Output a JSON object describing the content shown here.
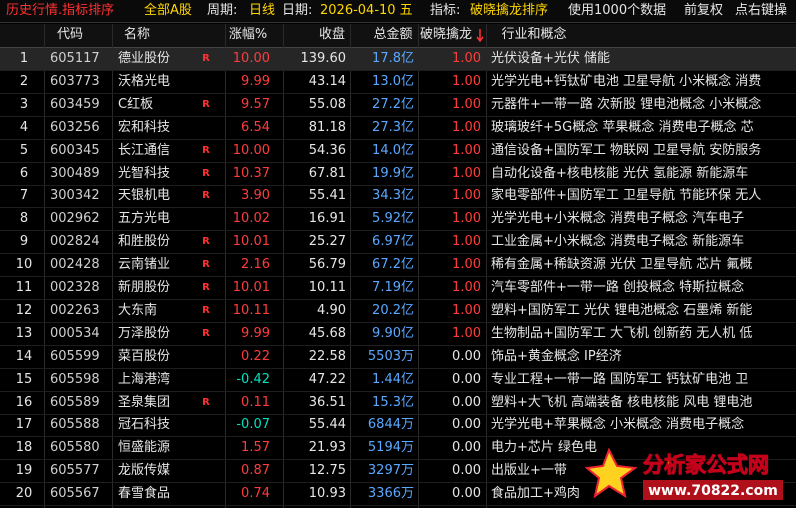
{
  "topbar": [
    "历史行情.指标排序",
    "全部A股",
    "周期:",
    "日线",
    "日期:",
    "2026-04-10 五",
    "指标:",
    "破晓擒龙排序",
    "使用1000个数据",
    "前复权",
    "点右键操"
  ],
  "columns": [
    "代码",
    "名称",
    "涨幅%",
    "收盘",
    "总金额",
    "破晓擒龙",
    "行业和概念"
  ],
  "rows": [
    [
      "1",
      "605117",
      "德业股份",
      "R",
      "10.00",
      "139.60",
      "17.8亿",
      "1.00",
      "光伏设备+光伏 储能"
    ],
    [
      "2",
      "603773",
      "沃格光电",
      null,
      "9.99",
      "43.14",
      "13.0亿",
      "1.00",
      "光学光电+钙钛矿电池 卫星导航 小米概念 消费"
    ],
    [
      "3",
      "603459",
      "C红板",
      "R",
      "9.57",
      "55.08",
      "27.2亿",
      "1.00",
      "元器件+一带一路 次新股 锂电池概念 小米概念"
    ],
    [
      "4",
      "603256",
      "宏和科技",
      null,
      "6.54",
      "81.18",
      "27.3亿",
      "1.00",
      "玻璃玻纤+5G概念 苹果概念 消费电子概念 芯"
    ],
    [
      "5",
      "600345",
      "长江通信",
      "R",
      "10.00",
      "54.36",
      "14.0亿",
      "1.00",
      "通信设备+国防军工 物联网 卫星导航 安防服务"
    ],
    [
      "6",
      "300489",
      "光智科技",
      "R",
      "10.37",
      "67.81",
      "19.9亿",
      "1.00",
      "自动化设备+核电核能 光伏 氢能源 新能源车"
    ],
    [
      "7",
      "300342",
      "天银机电",
      "R",
      "3.90",
      "55.41",
      "34.3亿",
      "1.00",
      "家电零部件+国防军工 卫星导航 节能环保 无人"
    ],
    [
      "8",
      "002962",
      "五方光电",
      null,
      "10.02",
      "16.91",
      "5.92亿",
      "1.00",
      "光学光电+小米概念 消费电子概念 汽车电子"
    ],
    [
      "9",
      "002824",
      "和胜股份",
      "R",
      "10.01",
      "25.27",
      "6.97亿",
      "1.00",
      "工业金属+小米概念 消费电子概念 新能源车"
    ],
    [
      "10",
      "002428",
      "云南锗业",
      "R",
      "2.16",
      "56.79",
      "67.2亿",
      "1.00",
      "稀有金属+稀缺资源 光伏 卫星导航 芯片 氟概"
    ],
    [
      "11",
      "002328",
      "新朋股份",
      "R",
      "10.01",
      "10.11",
      "7.19亿",
      "1.00",
      "汽车零部件+一带一路 创投概念 特斯拉概念"
    ],
    [
      "12",
      "002263",
      "大东南",
      "R",
      "10.11",
      "4.90",
      "20.2亿",
      "1.00",
      "塑料+国防军工 光伏 锂电池概念 石墨烯 新能"
    ],
    [
      "13",
      "000534",
      "万泽股份",
      "R",
      "9.99",
      "45.68",
      "9.90亿",
      "1.00",
      "生物制品+国防军工 大飞机 创新药 无人机 低"
    ],
    [
      "14",
      "605599",
      "菜百股份",
      null,
      "0.22",
      "22.58",
      "5503万",
      "0.00",
      "饰品+黄金概念 IP经济"
    ],
    [
      "15",
      "605598",
      "上海港湾",
      null,
      "-0.42",
      "47.22",
      "1.44亿",
      "0.00",
      "专业工程+一带一路 国防军工 钙钛矿电池 卫"
    ],
    [
      "16",
      "605589",
      "圣泉集团",
      "R",
      "0.11",
      "36.51",
      "15.3亿",
      "0.00",
      "塑料+大飞机 高端装备 核电核能 风电 锂电池"
    ],
    [
      "17",
      "605588",
      "冠石科技",
      null,
      "-0.07",
      "55.44",
      "6844万",
      "0.00",
      "光学光电+苹果概念 小米概念 消费电子概念"
    ],
    [
      "18",
      "605580",
      "恒盛能源",
      null,
      "1.57",
      "21.93",
      "5194万",
      "0.00",
      "电力+芯片 绿色电"
    ],
    [
      "19",
      "605577",
      "龙版传媒",
      null,
      "0.87",
      "12.75",
      "3297万",
      "0.00",
      "出版业+一带"
    ],
    [
      "20",
      "605567",
      "春雪食品",
      null,
      "0.74",
      "10.93",
      "3366万",
      "0.00",
      "食品加工+鸡肉"
    ]
  ],
  "watermark": {
    "name": "分析家公式网",
    "url": "www.70822.com"
  }
}
